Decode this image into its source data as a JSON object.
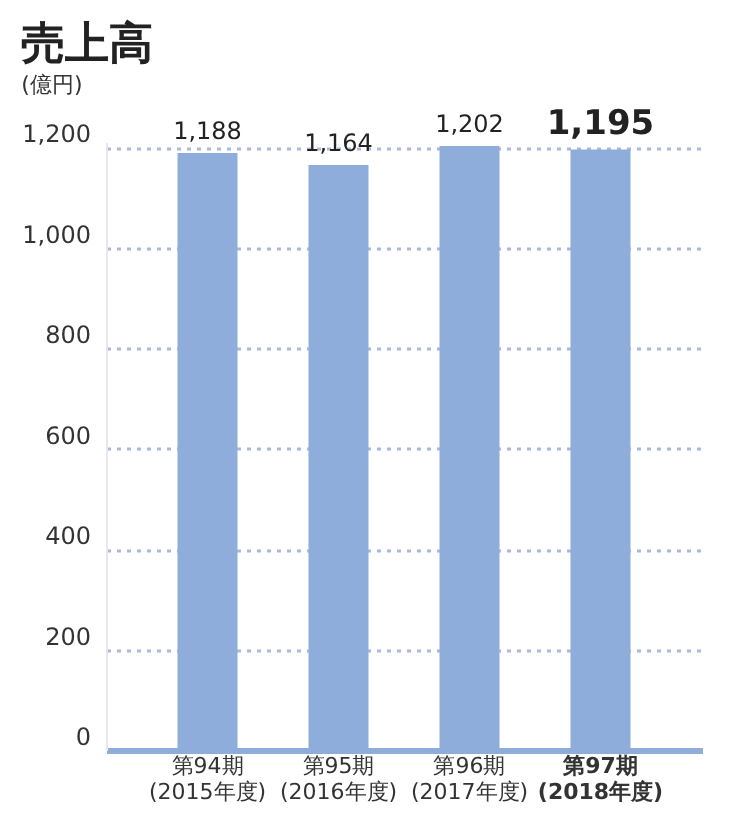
{
  "chart_data": {
    "type": "bar",
    "title": "売上高",
    "subtitle": "(億円)",
    "categories": [
      "第94期\n(2015年度)",
      "第95期\n(2016年度)",
      "第96期\n(2017年度)",
      "第97期\n(2018年度)"
    ],
    "values": [
      1188,
      1164,
      1202,
      1195
    ],
    "value_labels": [
      "1,188",
      "1,164",
      "1,202",
      "1,195"
    ],
    "color": "#8eaddb",
    "ylim": [
      0,
      1210
    ],
    "yticks": [
      0,
      200,
      400,
      600,
      800,
      {
        "value": 1000,
        "label": "1,000"
      },
      {
        "value": 1200,
        "label": "1,200"
      }
    ],
    "grid": "y"
  }
}
